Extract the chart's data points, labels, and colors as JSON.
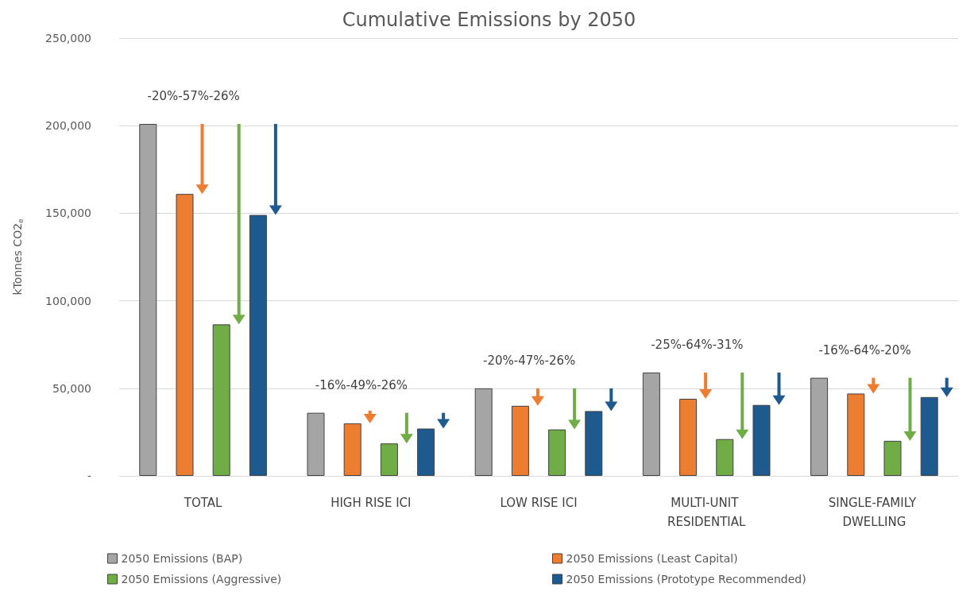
{
  "chart_data": {
    "type": "bar",
    "title": "Cumulative Emissions by 2050",
    "ylabel": "kTonnes CO2$_{e}$",
    "categories": [
      "TOTAL",
      "HIGH RISE ICI",
      "LOW RISE ICI",
      "MULTI-UNIT RESIDENTIAL",
      "SINGLE-FAMILY DWELLING"
    ],
    "series": [
      {
        "name": "2050 Emissions (BAP)",
        "color": "#a5a5a5",
        "values": [
          201000,
          36000,
          50000,
          59000,
          56000
        ]
      },
      {
        "name": "2050 Emissions (Least Capital)",
        "color": "#ed7d31",
        "values": [
          161000,
          30000,
          40000,
          44000,
          47000
        ]
      },
      {
        "name": "2050 Emissions (Aggressive)",
        "color": "#70ad47",
        "values": [
          86500,
          18500,
          26500,
          21000,
          20000
        ]
      },
      {
        "name": "2050 Emissions (Prototype Recommended)",
        "color": "#1f5a8f",
        "values": [
          149000,
          27000,
          37000,
          40500,
          45000
        ]
      }
    ],
    "annotations": [
      "-20%-57%-26%",
      "-16%-49%-26%",
      "-20%-47%-26%",
      "-25%-64%-31%",
      "-16%-64%-20%"
    ],
    "ylim": [
      0,
      250000
    ],
    "yticks": [
      {
        "value": 0,
        "label": "-"
      },
      {
        "value": 50000,
        "label": "50,000"
      },
      {
        "value": 100000,
        "label": "100,000"
      },
      {
        "value": 150000,
        "label": "150,000"
      },
      {
        "value": 200000,
        "label": "200,000"
      },
      {
        "value": 250000,
        "label": "250,000"
      }
    ],
    "grid": "y",
    "legend": "bottom"
  }
}
